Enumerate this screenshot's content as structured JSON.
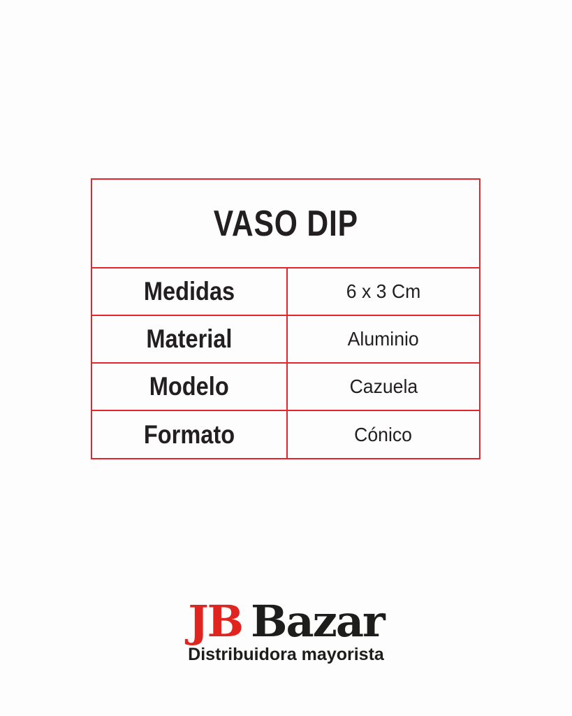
{
  "page": {
    "background_color": "#fdfdfd"
  },
  "table": {
    "title": "VASO DIP",
    "border_color": "#e5252a",
    "text_color": "#231f20",
    "rows": [
      {
        "label": "Medidas",
        "value": "6 x 3 Cm"
      },
      {
        "label": "Material",
        "value": "Aluminio"
      },
      {
        "label": "Modelo",
        "value": "Cazuela"
      },
      {
        "label": "Formato",
        "value": "Cónico"
      }
    ]
  },
  "logo": {
    "brand_initials": "JB",
    "brand_name": "Bazar",
    "tagline": "Distribuidora mayorista",
    "initials_color": "#e0241f",
    "name_color": "#1d1d1b"
  }
}
